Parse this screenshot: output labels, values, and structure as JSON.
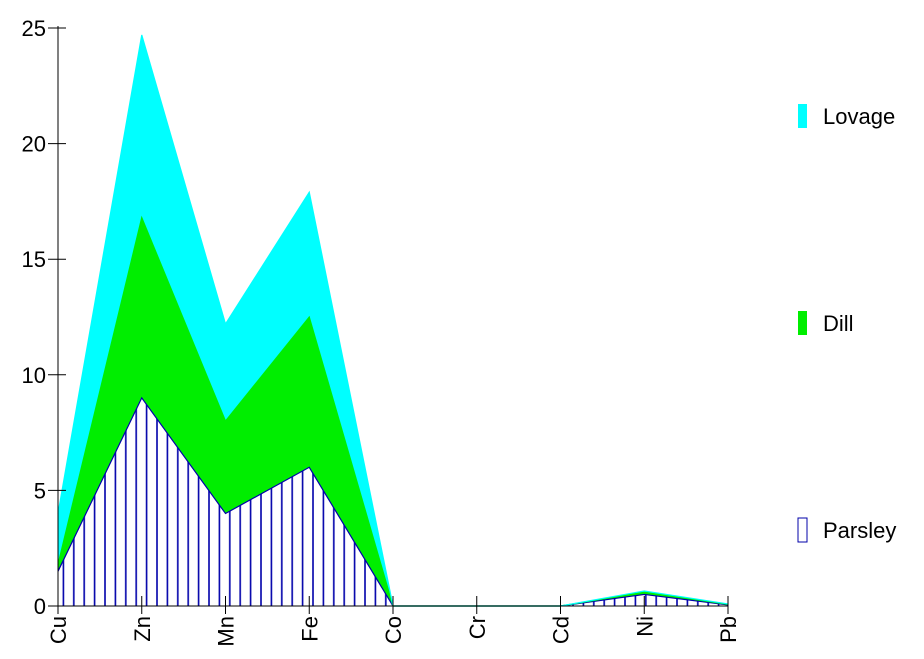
{
  "chart_data": {
    "type": "area",
    "stacked": true,
    "categories": [
      "Cu",
      "Zn",
      "Mn",
      "Fe",
      "Co",
      "Cr",
      "Cd",
      "Ni",
      "Pb"
    ],
    "series": [
      {
        "name": "Parsley",
        "values": [
          1.5,
          9.0,
          4.0,
          6.0,
          0.0,
          0.0,
          0.0,
          0.5,
          0.05
        ],
        "color": "#0000aa",
        "fill": "hatch-vertical"
      },
      {
        "name": "Dill",
        "values": [
          0.3,
          7.8,
          4.0,
          6.5,
          0.0,
          0.0,
          0.0,
          0.1,
          0.02
        ],
        "color": "#00ee00",
        "fill": "solid"
      },
      {
        "name": "Lovage",
        "values": [
          2.2,
          7.9,
          4.2,
          5.4,
          0.0,
          0.0,
          0.0,
          0.05,
          0.02
        ],
        "color": "#00ffff",
        "fill": "solid"
      }
    ],
    "legend_order": [
      "Lovage",
      "Dill",
      "Parsley"
    ],
    "yticks": [
      "0",
      "5",
      "10",
      "15",
      "20",
      "25"
    ],
    "ylim": [
      0,
      25
    ],
    "title": "",
    "xlabel": "",
    "ylabel": "",
    "grid": false,
    "legend_position": "right"
  }
}
